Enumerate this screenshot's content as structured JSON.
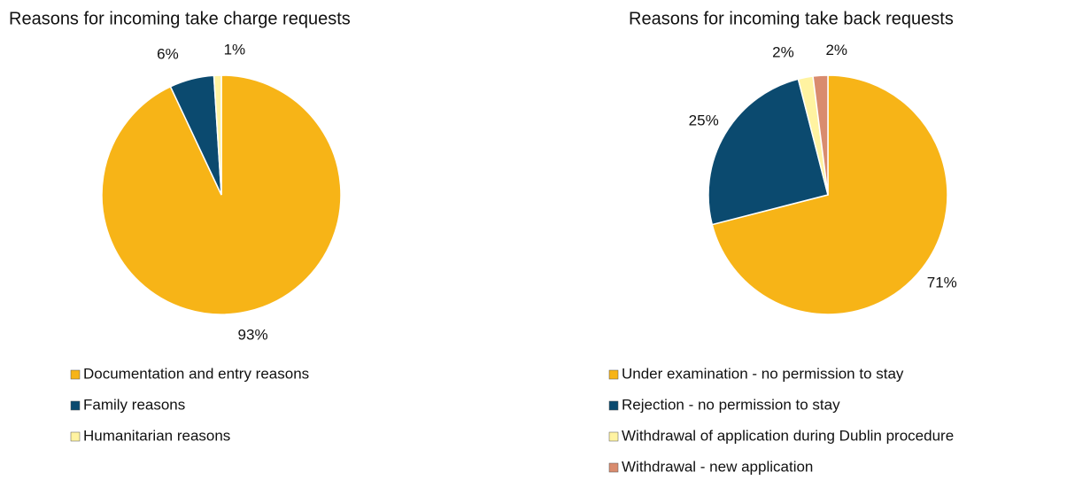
{
  "chart_data": [
    {
      "type": "pie",
      "title": "Reasons for incoming take charge requests",
      "categories": [
        "Documentation and entry reasons",
        "Family reasons",
        "Humanitarian reasons"
      ],
      "values": [
        93,
        6,
        1
      ],
      "value_labels": [
        "93%",
        "6%",
        "1%"
      ],
      "colors": [
        "#F7B417",
        "#0B4A6F",
        "#FFF3A1"
      ]
    },
    {
      "type": "pie",
      "title": "Reasons for incoming take back requests",
      "categories": [
        "Under examination - no permission to stay",
        "Rejection - no permission to stay",
        "Withdrawal of application during Dublin procedure",
        "Withdrawal - new application"
      ],
      "values": [
        71,
        25,
        2,
        2
      ],
      "value_labels": [
        "71%",
        "25%",
        "2%",
        "2%"
      ],
      "colors": [
        "#F7B417",
        "#0B4A6F",
        "#FFF3A1",
        "#D98B6E"
      ]
    }
  ]
}
